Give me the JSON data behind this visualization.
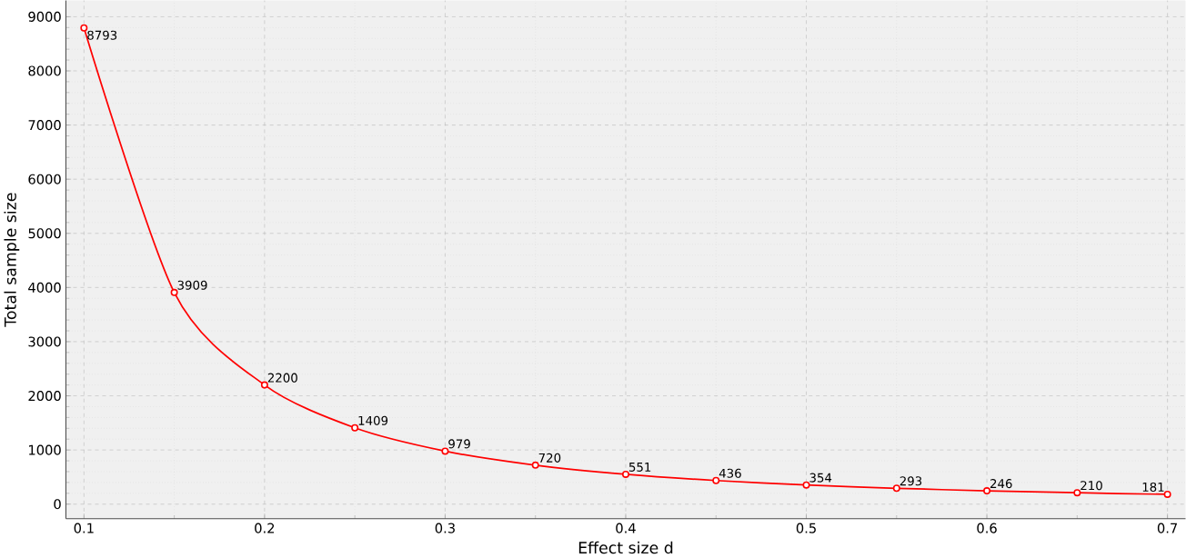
{
  "chart_data": {
    "type": "line",
    "xlabel": "Effect size d",
    "ylabel": "Total sample size",
    "x": [
      0.1,
      0.15,
      0.2,
      0.25,
      0.3,
      0.35,
      0.4,
      0.45,
      0.5,
      0.55,
      0.6,
      0.65,
      0.7
    ],
    "series": [
      {
        "color": "#ff0000",
        "values": [
          8793,
          3909,
          2200,
          1409,
          979,
          720,
          551,
          436,
          354,
          293,
          246,
          210,
          181
        ]
      }
    ],
    "xlim": [
      0.09,
      0.71
    ],
    "ylim": [
      -270,
      9300
    ],
    "xticks": [
      0.1,
      0.2,
      0.3,
      0.4,
      0.5,
      0.6,
      0.7
    ],
    "yticks": [
      0,
      1000,
      2000,
      3000,
      4000,
      5000,
      6000,
      7000,
      8000,
      9000
    ],
    "grid": true,
    "marker": "circle",
    "line_style": "solid",
    "data_labels": true
  }
}
